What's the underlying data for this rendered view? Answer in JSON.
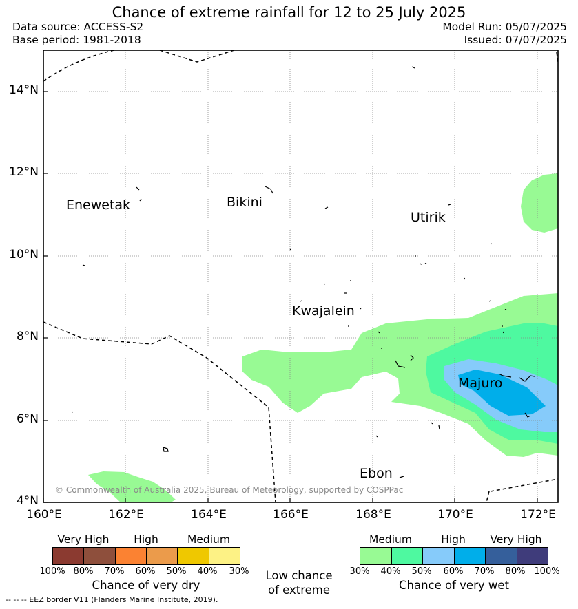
{
  "header": {
    "title": "Chance of extreme rainfall for 12 to 25 July 2025",
    "data_source": "Data source: ACCESS-S2",
    "base_period": "Base period: 1981-2018",
    "model_run": "Model Run: 05/07/2025",
    "issued": "Issued: 07/07/2025"
  },
  "axes": {
    "lat_labels": [
      "14°N",
      "12°N",
      "10°N",
      "8°N",
      "6°N",
      "4°N"
    ],
    "lon_labels": [
      "160°E",
      "162°E",
      "164°E",
      "166°E",
      "168°E",
      "170°E",
      "172°E"
    ]
  },
  "places": {
    "enewetak": "Enewetak",
    "bikini": "Bikini",
    "utirik": "Utirik",
    "kwajalein": "Kwajalein",
    "majuro": "Majuro",
    "ebon": "Ebon"
  },
  "copyright": "© Commonwealth of Australia 2025, Bureau of Meteorology, supported by COSPPac",
  "legend": {
    "dry": {
      "levels": [
        "Very High",
        "High",
        "Medium"
      ],
      "colors": [
        "#8b3a30",
        "#8e4f3c",
        "#fb8232",
        "#eb9b4b",
        "#efc800",
        "#fdf285"
      ],
      "ticks": [
        "100%",
        "80%",
        "70%",
        "60%",
        "50%",
        "40%",
        "30%"
      ],
      "label": "Chance of very dry"
    },
    "low": {
      "line1": "Low chance",
      "line2": "of extreme"
    },
    "wet": {
      "levels": [
        "Medium",
        "High",
        "Very High"
      ],
      "colors": [
        "#98fa94",
        "#4ef9a0",
        "#86cbfa",
        "#00aeea",
        "#355f9b",
        "#3f3c7b"
      ],
      "ticks": [
        "30%",
        "40%",
        "50%",
        "60%",
        "70%",
        "80%",
        "100%"
      ],
      "label": "Chance of very wet"
    }
  },
  "eez_note": "--  --  -- EEZ border V11 (Flanders Marine Institute, 2019)."
}
